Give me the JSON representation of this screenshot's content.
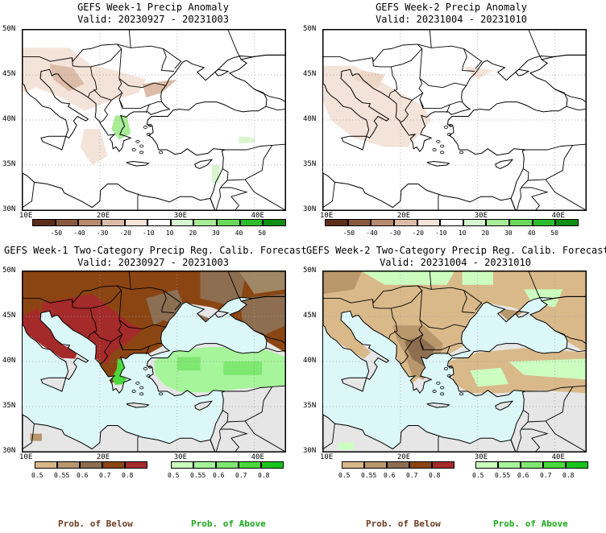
{
  "panels": [
    {
      "title": "GEFS Week-1 Precip Anomaly",
      "valid": "Valid: 20230927 - 20231003",
      "type": "anomaly",
      "variant": "w1"
    },
    {
      "title": "GEFS Week-2 Precip Anomaly",
      "valid": "Valid: 20231004 - 20231010",
      "type": "anomaly",
      "variant": "w2"
    },
    {
      "title": "GEFS Week-1 Two-Category Precip Reg. Calib. Forecast",
      "valid": "Valid: 20230927 - 20231003",
      "type": "prob",
      "variant": "w1"
    },
    {
      "title": "GEFS Week-2 Two-Category Precip Reg. Calib. Forecast",
      "valid": "Valid: 20231004 - 20231010",
      "type": "prob",
      "variant": "w2"
    }
  ],
  "lat_labels": [
    "50N",
    "45N",
    "40N",
    "35N",
    "30N"
  ],
  "lon_labels": [
    "10E",
    "20E",
    "30E",
    "40E"
  ],
  "anomaly_colorbar": {
    "labels": [
      "-50",
      "-40",
      "-30",
      "-20",
      "-10",
      "10",
      "20",
      "30",
      "40",
      "50"
    ],
    "colors": [
      "#5c2e1a",
      "#8a5a40",
      "#b88a6e",
      "#dcbca8",
      "#f4e3d8",
      "#ffffff",
      "#d9f5d0",
      "#a8ec96",
      "#6ad95a",
      "#2ebd2a",
      "#0e8f12"
    ]
  },
  "below_colorbar": {
    "labels": [
      "0.5",
      "0.55",
      "0.6",
      "0.7",
      "0.8"
    ],
    "colors": [
      "#d9b98a",
      "#b8976c",
      "#8d6e50",
      "#8b4513",
      "#a52a2a"
    ]
  },
  "above_colorbar": {
    "labels": [
      "0.5",
      "0.55",
      "0.6",
      "0.7",
      "0.8"
    ],
    "colors": [
      "#ccffbf",
      "#a6f59a",
      "#7ee870",
      "#4bd83d",
      "#17c41a"
    ]
  },
  "prob_labels": {
    "below": "Prob. of Below",
    "above": "Prob. of Above"
  },
  "colors": {
    "below_text": "#6b3b22",
    "above_text": "#1aa81a",
    "sea": "#dcf7f7",
    "land_nodata": "#e6e6e6"
  }
}
